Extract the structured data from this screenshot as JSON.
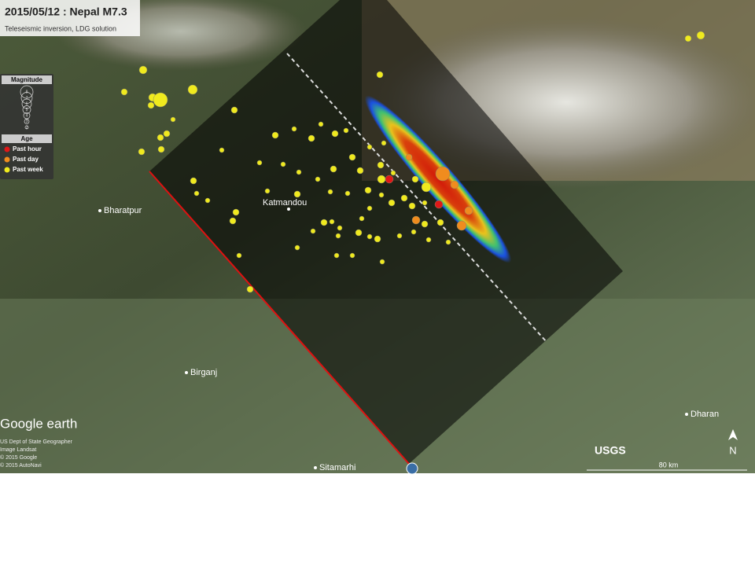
{
  "header": {
    "title": "2015/05/12 : Nepal M7.3",
    "subtitle": "Teleseismic inversion, LDG solution"
  },
  "legend": {
    "magnitude_title": "Magnitude",
    "magnitude_scale": [
      "8",
      "7",
      "6",
      "5",
      "4",
      "3",
      "2"
    ],
    "age_title": "Age",
    "items": [
      "Past hour",
      "Past day",
      "Past week"
    ]
  },
  "places": [
    "Bharatpur",
    "Katmandou",
    "Birganj",
    "Sitamarhi",
    "Dharan"
  ],
  "branding": {
    "google": "Google earth",
    "credits": [
      "US Dept of State Geographer",
      "Image Landsat",
      "© 2015 Google",
      "© 2015 AutoNavi"
    ],
    "usgs": "USGS",
    "scale": "80 km",
    "north": "N"
  }
}
